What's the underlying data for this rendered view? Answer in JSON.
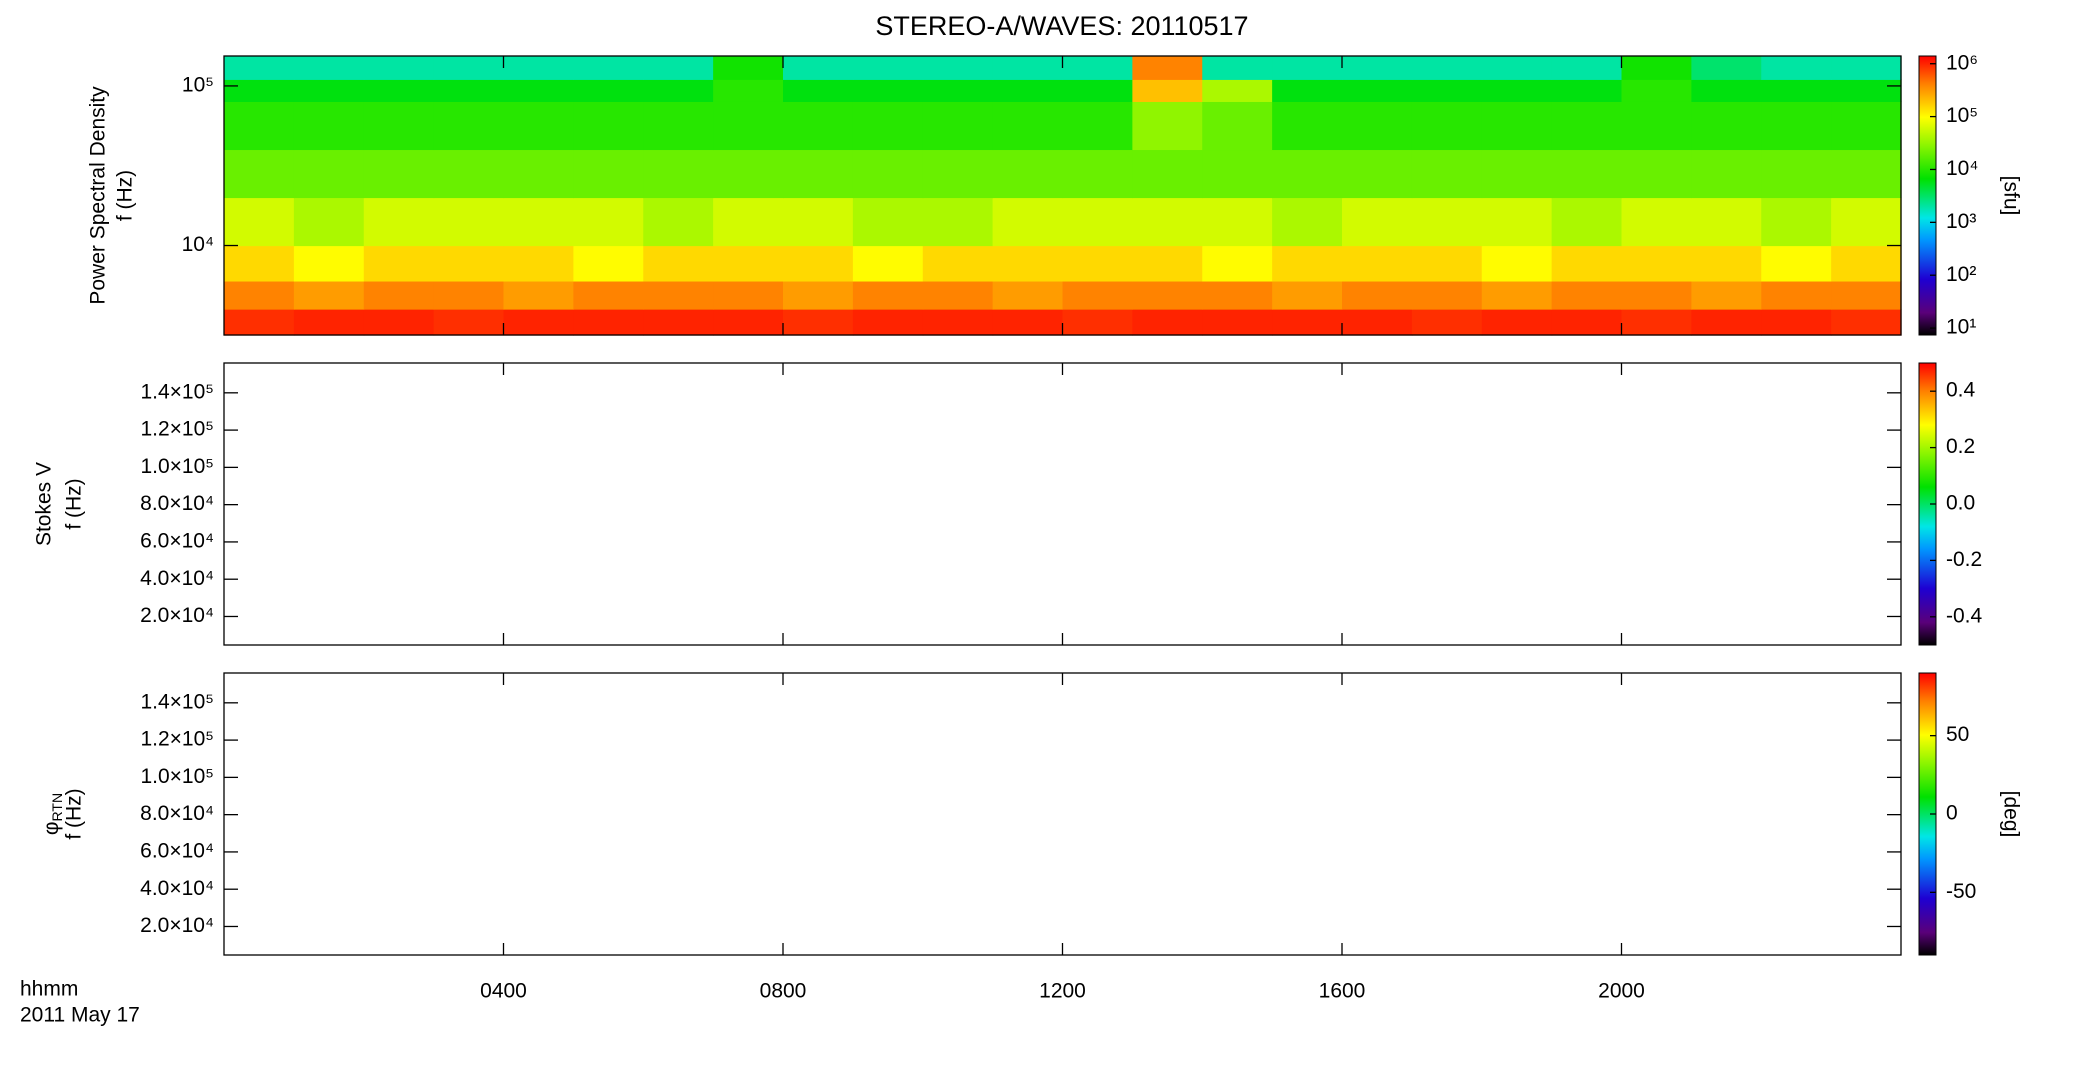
{
  "chart_data": {
    "type": "spectrogram",
    "title": "STEREO-A/WAVES: 20110517",
    "x_label": [
      "hhmm",
      "2011 May 17"
    ],
    "xlim": [
      0,
      24
    ],
    "xticks": [
      {
        "value": 4,
        "label": "0400"
      },
      {
        "value": 8,
        "label": "0800"
      },
      {
        "value": 12,
        "label": "1200"
      },
      {
        "value": 16,
        "label": "1600"
      },
      {
        "value": 20,
        "label": "2000"
      }
    ],
    "panels": [
      {
        "type": "heatmap",
        "ylabel": [
          "Power Spectral Density",
          "f (Hz)"
        ],
        "yscale": "log",
        "ylim": [
          2750,
          154000
        ],
        "yticks": [
          {
            "value": 10000,
            "label": "10⁴"
          },
          {
            "value": 100000,
            "label": "10⁵"
          }
        ],
        "colorbar": {
          "label": "[sfu]",
          "scale": "log",
          "lim": [
            7.4,
            1400000
          ],
          "ticks": [
            {
              "value": 10,
              "label": "10¹"
            },
            {
              "value": 100,
              "label": "10²"
            },
            {
              "value": 1000,
              "label": "10³"
            },
            {
              "value": 10000,
              "label": "10⁴"
            },
            {
              "value": 100000,
              "label": "10⁵"
            },
            {
              "value": 1000000,
              "label": "10⁶"
            }
          ]
        },
        "xbins": [
          0,
          1,
          2,
          3,
          4,
          5,
          6,
          7,
          8,
          9,
          10,
          11,
          12,
          13,
          14,
          15,
          16,
          17,
          18,
          19,
          20,
          21,
          22,
          23,
          24
        ],
        "ybins": [
          2750,
          4000,
          6000,
          10000,
          20000,
          40000,
          80000,
          110000,
          154000
        ],
        "z": [
          [
            900000,
            1000000,
            1000000,
            900000,
            1000000,
            1000000,
            1000000,
            1000000,
            900000,
            1000000,
            1000000,
            1000000,
            900000,
            1000000,
            1000000,
            1000000,
            1000000,
            900000,
            1000000,
            1000000,
            900000,
            1000000,
            1000000,
            900000
          ],
          [
            400000,
            300000,
            400000,
            400000,
            300000,
            400000,
            400000,
            400000,
            300000,
            400000,
            400000,
            300000,
            400000,
            400000,
            400000,
            300000,
            400000,
            400000,
            300000,
            400000,
            400000,
            300000,
            400000,
            400000
          ],
          [
            150000,
            100000,
            150000,
            150000,
            150000,
            100000,
            150000,
            150000,
            150000,
            100000,
            150000,
            150000,
            150000,
            150000,
            100000,
            150000,
            150000,
            150000,
            100000,
            150000,
            150000,
            150000,
            100000,
            150000
          ],
          [
            60000,
            40000,
            60000,
            60000,
            60000,
            60000,
            40000,
            60000,
            60000,
            40000,
            40000,
            60000,
            60000,
            60000,
            60000,
            40000,
            60000,
            60000,
            60000,
            40000,
            60000,
            60000,
            40000,
            60000
          ],
          [
            20000,
            20000,
            20000,
            20000,
            20000,
            20000,
            20000,
            20000,
            20000,
            20000,
            20000,
            20000,
            20000,
            20000,
            20000,
            20000,
            20000,
            20000,
            20000,
            20000,
            20000,
            20000,
            20000,
            20000
          ],
          [
            10000,
            10000,
            10000,
            10000,
            10000,
            10000,
            10000,
            10000,
            10000,
            10000,
            10000,
            10000,
            10000,
            30000,
            20000,
            10000,
            10000,
            10000,
            10000,
            10000,
            10000,
            10000,
            10000,
            10000
          ],
          [
            6000,
            6000,
            6000,
            6000,
            6000,
            6000,
            6000,
            10000,
            6000,
            6000,
            6000,
            6000,
            6000,
            200000,
            40000,
            6000,
            6000,
            6000,
            6000,
            6000,
            10000,
            6000,
            6000,
            6000
          ],
          [
            2000,
            2000,
            2000,
            2000,
            2000,
            2000,
            2000,
            8000,
            2000,
            2000,
            2000,
            2000,
            2000,
            400000,
            2000,
            2000,
            2000,
            2000,
            2000,
            2000,
            8000,
            3000,
            2000,
            2000
          ]
        ]
      },
      {
        "type": "empty",
        "ylabel": [
          "Stokes V",
          "f (Hz)"
        ],
        "yscale": "linear",
        "ylim": [
          4700,
          156000
        ],
        "yticks": [
          {
            "value": 20000,
            "label": "2.0×10⁴"
          },
          {
            "value": 40000,
            "label": "4.0×10⁴"
          },
          {
            "value": 60000,
            "label": "6.0×10⁴"
          },
          {
            "value": 80000,
            "label": "8.0×10⁴"
          },
          {
            "value": 100000,
            "label": "1.0×10⁵"
          },
          {
            "value": 120000,
            "label": "1.2×10⁵"
          },
          {
            "value": 140000,
            "label": "1.4×10⁵"
          }
        ],
        "colorbar": {
          "scale": "linear",
          "lim": [
            -0.5,
            0.5
          ],
          "ticks": [
            {
              "value": -0.4,
              "label": "-0.4"
            },
            {
              "value": -0.2,
              "label": "-0.2"
            },
            {
              "value": 0,
              "label": "0.0"
            },
            {
              "value": 0.2,
              "label": "0.2"
            },
            {
              "value": 0.4,
              "label": "0.4"
            }
          ]
        }
      },
      {
        "type": "empty",
        "ylabel_symbol": "φ",
        "ylabel_sub": "RTN",
        "ylabel": [
          "f (Hz)"
        ],
        "yscale": "linear",
        "ylim": [
          4700,
          156000
        ],
        "yticks": [
          {
            "value": 20000,
            "label": "2.0×10⁴"
          },
          {
            "value": 40000,
            "label": "4.0×10⁴"
          },
          {
            "value": 60000,
            "label": "6.0×10⁴"
          },
          {
            "value": 80000,
            "label": "8.0×10⁴"
          },
          {
            "value": 100000,
            "label": "1.0×10⁵"
          },
          {
            "value": 120000,
            "label": "1.2×10⁵"
          },
          {
            "value": 140000,
            "label": "1.4×10⁵"
          }
        ],
        "colorbar": {
          "label": "[deg]",
          "scale": "linear",
          "lim": [
            -90,
            90
          ],
          "ticks": [
            -50,
            0,
            50
          ]
        }
      }
    ]
  }
}
